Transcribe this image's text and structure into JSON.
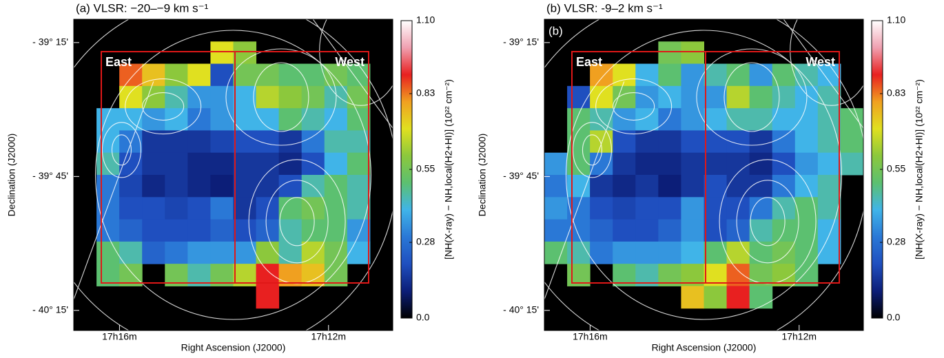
{
  "chart_data": [
    {
      "type": "heatmap",
      "title": "(a) VLSR: −20–−9 km s⁻¹",
      "xlabel": "Right Ascension (J2000)",
      "ylabel": "Declination (J2000)",
      "xlim": [
        17.2813,
        17.1795
      ],
      "ylim": [
        -40.325,
        -39.163
      ],
      "xticks": [
        {
          "value": 17.2667,
          "label": "17h16m"
        },
        {
          "value": 17.2,
          "label": "17h12m"
        }
      ],
      "yticks": [
        {
          "value": -39.25,
          "label": "- 39° 15'"
        },
        {
          "value": -39.75,
          "label": "- 39° 45'"
        },
        {
          "value": -40.25,
          "label": "- 40° 15'"
        }
      ],
      "region_labels": [
        "East",
        "West"
      ],
      "colorbar": {
        "label": "[NH(X-ray) − NH,local(H2+HI)] (10²² cm⁻²)",
        "lim": [
          0,
          1.1
        ],
        "ticks": [
          {
            "value": 0,
            "label": "0.0"
          },
          0.28,
          0.55,
          0.83,
          {
            "value": 1.1,
            "label": "1.10"
          }
        ]
      },
      "colormap": [
        "#000000",
        "#0c1e78",
        "#1f4fbf",
        "#2a78d6",
        "#40b4e8",
        "#5cc070",
        "#8cc83c",
        "#e0e020",
        "#f0a020",
        "#e82020",
        "#f0a0b0",
        "#ffffff"
      ],
      "values": [
        [
          null,
          null,
          null,
          null,
          null,
          null,
          null,
          null,
          null,
          null,
          null,
          null,
          null,
          null
        ],
        [
          null,
          null,
          null,
          null,
          null,
          null,
          0.7,
          0.6,
          null,
          null,
          null,
          null,
          null,
          null
        ],
        [
          null,
          null,
          0.85,
          0.75,
          0.6,
          0.7,
          0.2,
          0.55,
          0.55,
          0.5,
          0.5,
          0.55,
          0.5,
          null
        ],
        [
          null,
          null,
          0.7,
          0.6,
          0.45,
          0.35,
          0.35,
          0.4,
          0.65,
          0.6,
          0.55,
          0.45,
          0.55,
          null
        ],
        [
          null,
          0.4,
          0.4,
          0.35,
          0.4,
          0.3,
          0.35,
          0.4,
          0.4,
          0.5,
          0.45,
          0.4,
          0.5,
          null
        ],
        [
          null,
          0.4,
          0.3,
          0.15,
          0.15,
          0.15,
          0.18,
          0.2,
          0.2,
          0.15,
          0.3,
          0.45,
          0.45,
          null
        ],
        [
          null,
          0.45,
          0.2,
          0.15,
          0.15,
          0.12,
          0.12,
          0.15,
          0.15,
          0.12,
          0.2,
          0.4,
          0.5,
          null
        ],
        [
          null,
          0.3,
          0.18,
          0.12,
          0.15,
          0.12,
          0.1,
          0.15,
          0.15,
          0.2,
          0.45,
          0.5,
          0.45,
          null
        ],
        [
          null,
          0.3,
          0.2,
          0.2,
          0.18,
          0.2,
          0.3,
          0.15,
          0.2,
          0.5,
          0.55,
          0.5,
          0.45,
          null
        ],
        [
          null,
          0.3,
          0.25,
          0.2,
          0.2,
          0.2,
          0.25,
          0.2,
          0.25,
          0.45,
          0.5,
          0.5,
          0.35,
          null
        ],
        [
          null,
          0.5,
          0.45,
          0.25,
          0.3,
          0.35,
          0.35,
          0.35,
          0.6,
          0.45,
          0.65,
          0.55,
          0.4,
          null
        ],
        [
          null,
          0.5,
          0.55,
          null,
          0.55,
          0.45,
          0.55,
          0.65,
          0.9,
          0.8,
          0.75,
          0.55,
          null,
          null
        ],
        [
          null,
          null,
          null,
          null,
          null,
          null,
          null,
          null,
          0.9,
          null,
          null,
          null,
          null,
          null
        ],
        [
          null,
          null,
          null,
          null,
          null,
          null,
          null,
          null,
          null,
          null,
          null,
          null,
          null,
          null
        ]
      ]
    },
    {
      "type": "heatmap",
      "title": "(b) VLSR: -9–2 km s⁻¹",
      "inset_label": "(b)",
      "xlabel": "Right Ascension (J2000)",
      "ylabel": "Declination (J2000)",
      "xlim": [
        17.2813,
        17.1795
      ],
      "ylim": [
        -40.325,
        -39.163
      ],
      "xticks": [
        {
          "value": 17.2667,
          "label": "17h16m"
        },
        {
          "value": 17.2,
          "label": "17h12m"
        }
      ],
      "yticks": [
        {
          "value": -39.25,
          "label": "- 39° 15'"
        },
        {
          "value": -39.75,
          "label": "- 39° 45'"
        },
        {
          "value": -40.25,
          "label": "- 40° 15'"
        }
      ],
      "region_labels": [
        "East",
        "West"
      ],
      "colorbar": {
        "label": "[NH(X-ray) − NH,local(H2+HI)] (10²² cm⁻²)",
        "lim": [
          0,
          1.1
        ],
        "ticks": [
          {
            "value": 0,
            "label": "0.0"
          },
          0.28,
          0.55,
          0.83,
          {
            "value": 1.1,
            "label": "1.10"
          }
        ]
      },
      "colormap": [
        "#000000",
        "#0c1e78",
        "#1f4fbf",
        "#2a78d6",
        "#40b4e8",
        "#5cc070",
        "#8cc83c",
        "#e0e020",
        "#f0a020",
        "#e82020",
        "#f0a0b0",
        "#ffffff"
      ],
      "values": [
        [
          null,
          null,
          null,
          null,
          null,
          null,
          null,
          null,
          null,
          null,
          null,
          null,
          null,
          null
        ],
        [
          null,
          null,
          null,
          null,
          null,
          0.55,
          0.6,
          null,
          null,
          null,
          null,
          null,
          null,
          null
        ],
        [
          null,
          null,
          0.8,
          0.7,
          0.4,
          0.5,
          0.35,
          0.45,
          0.5,
          0.35,
          0.5,
          0.45,
          0.4,
          null
        ],
        [
          null,
          0.2,
          0.7,
          0.55,
          0.35,
          0.4,
          0.35,
          0.35,
          0.65,
          0.5,
          0.45,
          0.4,
          0.45,
          null
        ],
        [
          null,
          0.5,
          0.45,
          0.35,
          0.4,
          0.3,
          0.35,
          0.4,
          0.45,
          0.45,
          0.4,
          0.4,
          0.45,
          0.5
        ],
        [
          null,
          0.5,
          0.65,
          0.2,
          0.15,
          0.15,
          0.2,
          0.2,
          0.2,
          0.15,
          0.3,
          0.4,
          0.45,
          0.5
        ],
        [
          0.35,
          0.5,
          0.3,
          0.15,
          0.12,
          0.12,
          0.15,
          0.15,
          0.15,
          0.12,
          0.2,
          0.35,
          0.4,
          0.45
        ],
        [
          0.3,
          0.4,
          0.15,
          0.12,
          0.15,
          0.1,
          0.15,
          0.2,
          0.15,
          0.15,
          0.3,
          0.4,
          0.45,
          null
        ],
        [
          0.35,
          0.3,
          0.2,
          0.18,
          0.2,
          0.2,
          0.35,
          0.2,
          0.2,
          0.3,
          0.45,
          0.5,
          0.45,
          null
        ],
        [
          0.3,
          0.3,
          0.25,
          0.2,
          0.2,
          0.25,
          0.35,
          0.2,
          0.25,
          0.45,
          0.5,
          0.5,
          0.4,
          null
        ],
        [
          0.5,
          0.45,
          0.3,
          0.35,
          0.35,
          0.35,
          0.4,
          0.5,
          0.65,
          0.5,
          0.55,
          0.5,
          0.4,
          null
        ],
        [
          null,
          0.55,
          null,
          0.5,
          0.45,
          0.55,
          0.6,
          0.7,
          0.85,
          0.55,
          0.6,
          0.5,
          null,
          null
        ],
        [
          null,
          null,
          null,
          null,
          null,
          null,
          0.75,
          0.6,
          0.9,
          0.5,
          null,
          null,
          null,
          null
        ],
        [
          null,
          null,
          null,
          null,
          null,
          null,
          null,
          null,
          null,
          null,
          null,
          null,
          null,
          null
        ]
      ]
    }
  ]
}
